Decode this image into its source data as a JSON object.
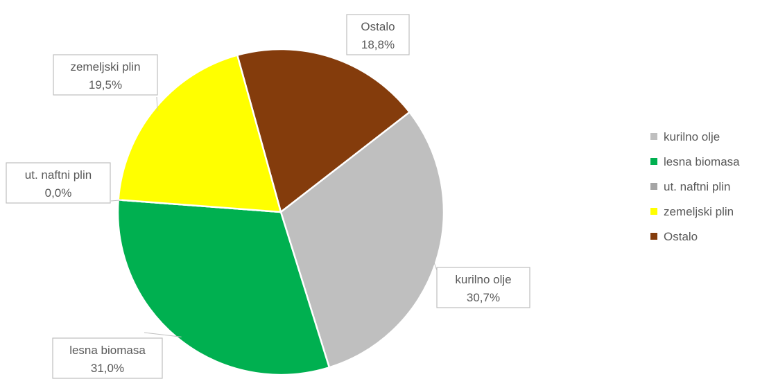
{
  "chart_data": {
    "type": "pie",
    "title": "",
    "legend_position": "right",
    "slices": [
      {
        "label": "kurilno olje",
        "value": 30.7,
        "value_label": "30,7%",
        "color": "#BFBFBF"
      },
      {
        "label": "lesna biomasa",
        "value": 31.0,
        "value_label": "31,0%",
        "color": "#00B050"
      },
      {
        "label": "ut. naftni plin",
        "value": 0.0,
        "value_label": "0,0%",
        "color": "#A5A5A5"
      },
      {
        "label": "zemeljski plin",
        "value": 19.5,
        "value_label": "19,5%",
        "color": "#FFFF00"
      },
      {
        "label": "Ostalo",
        "value": 18.8,
        "value_label": "18,8%",
        "color": "#843C0C"
      }
    ]
  }
}
